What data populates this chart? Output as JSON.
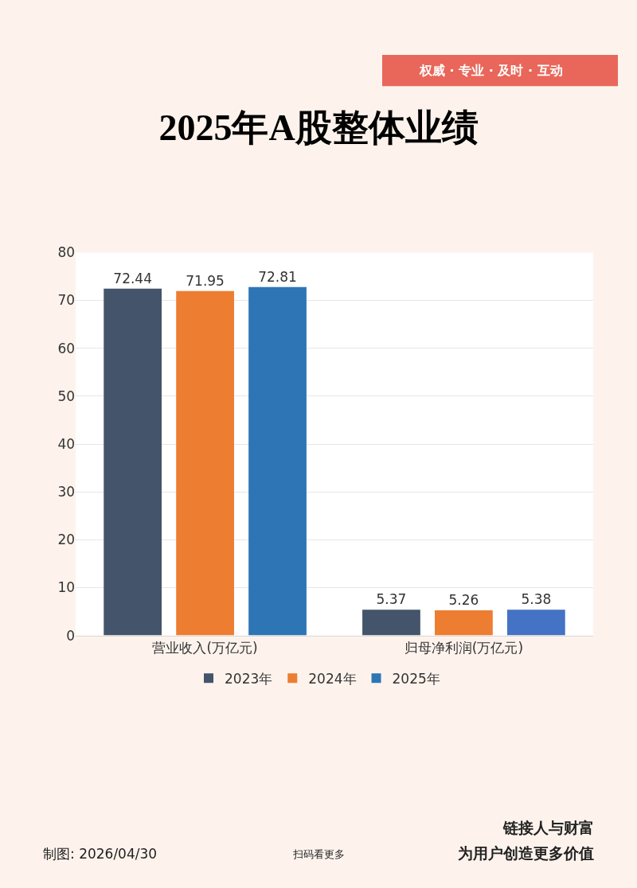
{
  "chart_data": {
    "type": "bar",
    "title": "2025年A股整体业绩",
    "categories": [
      "营业收入(万亿元)",
      "归母净利润(万亿元)"
    ],
    "series": [
      {
        "name": "2023年",
        "color": "#44546a",
        "values": [
          72.44,
          5.37
        ]
      },
      {
        "name": "2024年",
        "color": "#ed7d31",
        "values": [
          71.95,
          5.26
        ]
      },
      {
        "name": "2025年",
        "color": "#4472c4",
        "colors": [
          "#2e75b6",
          "#4472c4"
        ],
        "values": [
          72.81,
          5.38
        ]
      }
    ],
    "ylim": [
      0,
      80
    ],
    "yticks": [
      0,
      10,
      20,
      30,
      40,
      50,
      60,
      70,
      80
    ],
    "grid": "y",
    "legend": "bottom",
    "data_labels": true,
    "annotations": [
      "权威 · 专业 · 及时 · 互动",
      "制图: 2026/04/30",
      "扫码看更多",
      "链接人与财富",
      "为用户创造更多价值"
    ]
  }
}
